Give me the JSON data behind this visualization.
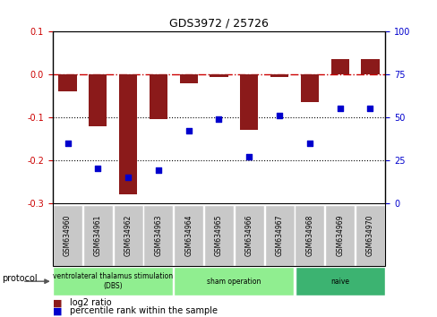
{
  "title": "GDS3972 / 25726",
  "samples": [
    "GSM634960",
    "GSM634961",
    "GSM634962",
    "GSM634963",
    "GSM634964",
    "GSM634965",
    "GSM634966",
    "GSM634967",
    "GSM634968",
    "GSM634969",
    "GSM634970"
  ],
  "log2_ratio": [
    -0.04,
    -0.12,
    -0.28,
    -0.105,
    -0.02,
    -0.005,
    -0.13,
    -0.005,
    -0.065,
    0.035,
    0.035
  ],
  "percentile_rank": [
    35,
    20,
    15,
    19,
    42,
    49,
    27,
    51,
    35,
    55,
    55
  ],
  "bar_color": "#8B1A1A",
  "dot_color": "#0000CD",
  "ylim_left": [
    -0.3,
    0.1
  ],
  "ylim_right": [
    0,
    100
  ],
  "yticks_left": [
    0.1,
    0.0,
    -0.1,
    -0.2,
    -0.3
  ],
  "yticks_right": [
    100,
    75,
    50,
    25,
    0
  ],
  "protocol_groups": [
    {
      "label": "ventrolateral thalamus stimulation\n(DBS)",
      "start": 0,
      "end": 3,
      "color": "#90EE90"
    },
    {
      "label": "sham operation",
      "start": 4,
      "end": 7,
      "color": "#90EE90"
    },
    {
      "label": "naive",
      "start": 8,
      "end": 10,
      "color": "#3CB371"
    }
  ],
  "legend_log2": "log2 ratio",
  "legend_pct": "percentile rank within the sample",
  "xlabel_protocol": "protocol"
}
